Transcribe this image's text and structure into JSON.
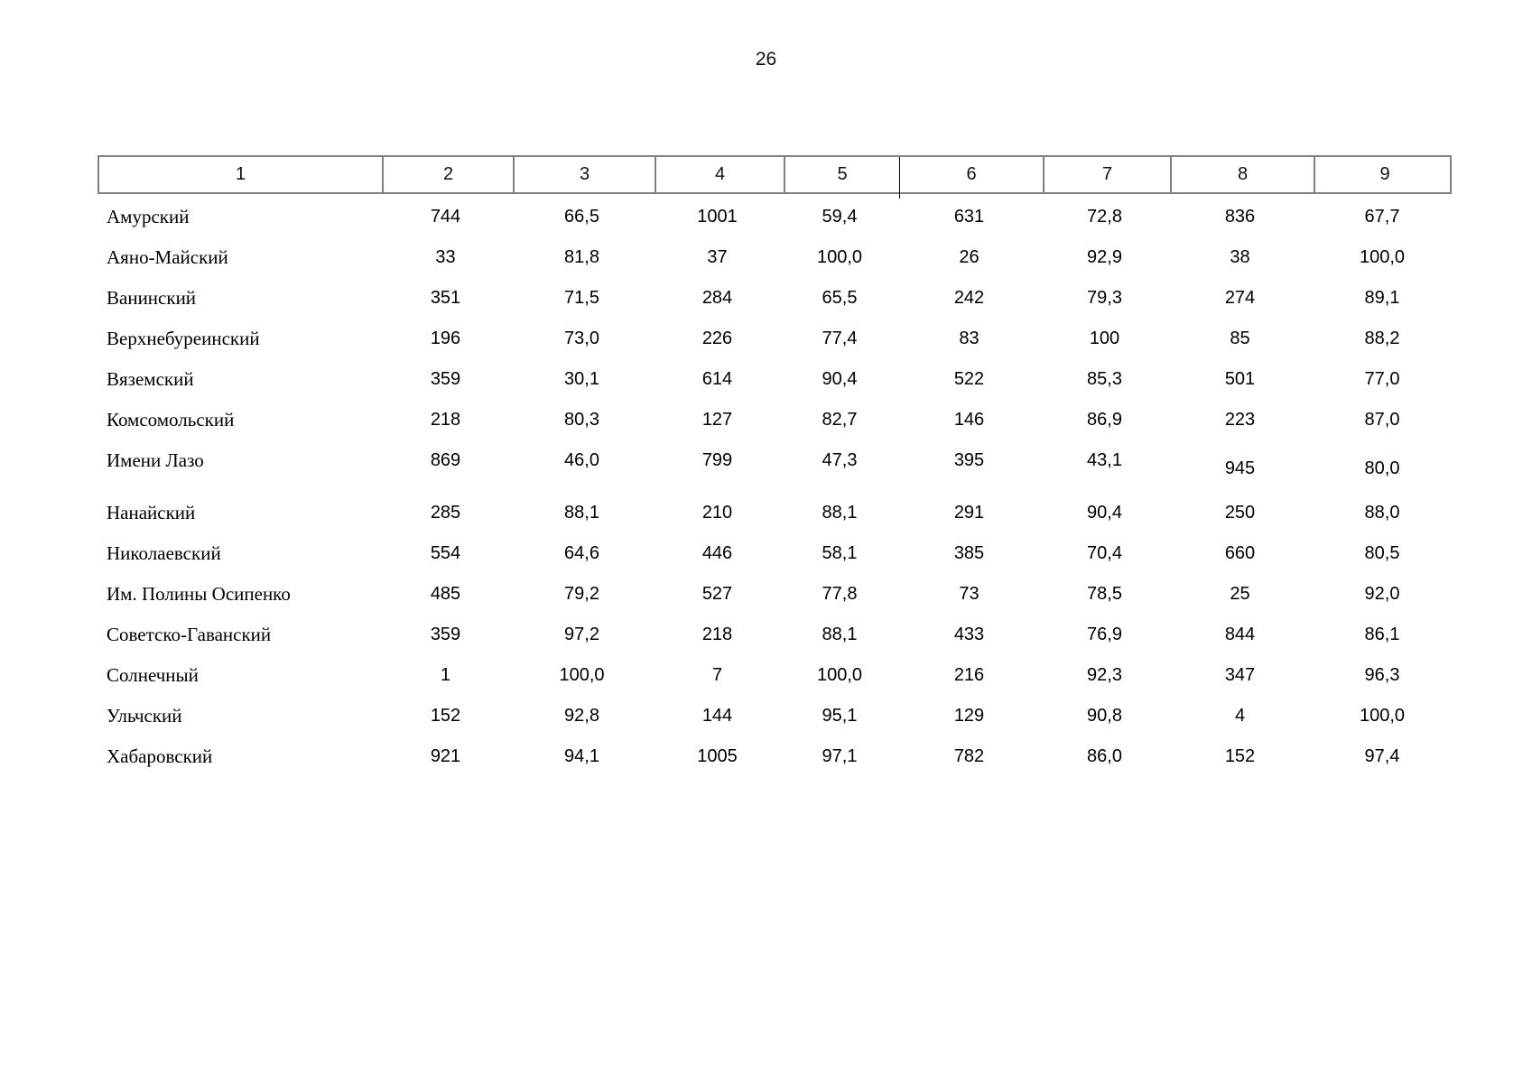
{
  "page": {
    "number": "26"
  },
  "colors": {
    "border_gray": "#808080",
    "dark_separator": "#000000",
    "text": "#000000",
    "background": "#ffffff"
  },
  "table": {
    "headers": [
      "1",
      "2",
      "3",
      "4",
      "5",
      "6",
      "7",
      "8",
      "9"
    ],
    "rows": [
      {
        "name": "Амурский",
        "values": [
          "744",
          "66,5",
          "1001",
          "59,4",
          "631",
          "72,8",
          "836",
          "67,7"
        ]
      },
      {
        "name": "Аяно-Майский",
        "values": [
          "33",
          "81,8",
          "37",
          "100,0",
          "26",
          "92,9",
          "38",
          "100,0"
        ]
      },
      {
        "name": "Ванинский",
        "values": [
          "351",
          "71,5",
          "284",
          "65,5",
          "242",
          "79,3",
          "274",
          "89,1"
        ]
      },
      {
        "name": "Верхнебуреинский",
        "values": [
          "196",
          "73,0",
          "226",
          "77,4",
          "83",
          "100",
          "85",
          "88,2"
        ]
      },
      {
        "name": "Вяземский",
        "values": [
          "359",
          "30,1",
          "614",
          "90,4",
          "522",
          "85,3",
          "501",
          "77,0"
        ]
      },
      {
        "name": "Комсомольский",
        "values": [
          "218",
          "80,3",
          "127",
          "82,7",
          "146",
          "86,9",
          "223",
          "87,0"
        ]
      },
      {
        "name": "Имени Лазо",
        "values": [
          "869",
          "46,0",
          "799",
          "47,3",
          "395",
          "43,1",
          "945",
          "80,0"
        ]
      },
      {
        "name": "Нанайский",
        "values": [
          "285",
          "88,1",
          "210",
          "88,1",
          "291",
          "90,4",
          "250",
          "88,0"
        ]
      },
      {
        "name": "Николаевский",
        "values": [
          "554",
          "64,6",
          "446",
          "58,1",
          "385",
          "70,4",
          "660",
          "80,5"
        ]
      },
      {
        "name": "Им. Полины Осипенко",
        "values": [
          "485",
          "79,2",
          "527",
          "77,8",
          "73",
          "78,5",
          "25",
          "92,0"
        ]
      },
      {
        "name": "Советско-Гаванский",
        "values": [
          "359",
          "97,2",
          "218",
          "88,1",
          "433",
          "76,9",
          "844",
          "86,1"
        ]
      },
      {
        "name": "Солнечный",
        "values": [
          "1",
          "100,0",
          "7",
          "100,0",
          "216",
          "92,3",
          "347",
          "96,3"
        ]
      },
      {
        "name": "Ульчский",
        "values": [
          "152",
          "92,8",
          "144",
          "95,1",
          "129",
          "90,8",
          "4",
          "100,0"
        ]
      },
      {
        "name": "Хабаровский",
        "values": [
          "921",
          "94,1",
          "1005",
          "97,1",
          "782",
          "86,0",
          "152",
          "97,4"
        ]
      }
    ]
  }
}
